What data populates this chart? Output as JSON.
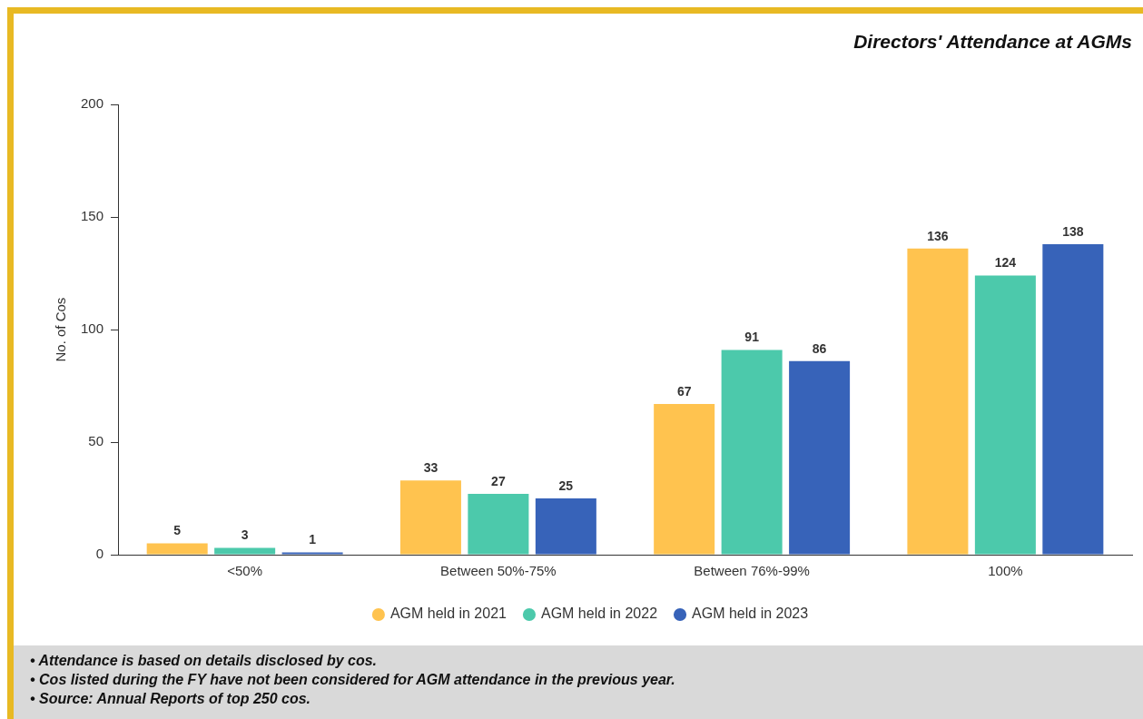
{
  "chart_data": {
    "type": "bar",
    "title": "Directors' Attendance at AGMs",
    "ylabel": "No. of Cos",
    "categories": [
      "<50%",
      "Between 50%-75%",
      "Between 76%-99%",
      "100%"
    ],
    "series": [
      {
        "name": "AGM held in 2021",
        "color": "#ffc34f",
        "values": [
          5,
          33,
          67,
          136
        ]
      },
      {
        "name": "AGM held in 2022",
        "color": "#4cc9ab",
        "values": [
          3,
          27,
          91,
          124
        ]
      },
      {
        "name": "AGM held in 2023",
        "color": "#3763b9",
        "values": [
          1,
          25,
          86,
          138
        ]
      }
    ],
    "ylim": [
      0,
      200
    ],
    "yticks": [
      0,
      50,
      100,
      150,
      200
    ],
    "grid": false,
    "legend": "bottom",
    "data_labels": true,
    "annotations": [
      "• Attendance is based on details disclosed by cos.",
      "• Cos listed during the FY have not been considered for AGM attendance in the previous year.",
      "• Source: Annual Reports of top 250 cos."
    ]
  }
}
